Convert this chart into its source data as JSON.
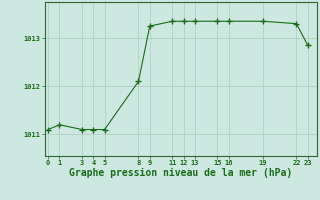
{
  "x": [
    0,
    1,
    3,
    4,
    5,
    8,
    9,
    11,
    12,
    13,
    15,
    16,
    19,
    22,
    23
  ],
  "y": [
    1011.1,
    1011.2,
    1011.1,
    1011.1,
    1011.1,
    1012.1,
    1013.25,
    1013.35,
    1013.35,
    1013.35,
    1013.35,
    1013.35,
    1013.35,
    1013.3,
    1012.85
  ],
  "line_color": "#1a6b1a",
  "marker_color": "#1a6b1a",
  "bg_color": "#cce8e0",
  "grid_color": "#aaccbb",
  "xlabel": "Graphe pression niveau de la mer (hPa)",
  "xlabel_color": "#1a6b1a",
  "xticks": [
    0,
    1,
    3,
    4,
    5,
    8,
    9,
    11,
    12,
    13,
    15,
    16,
    19,
    22,
    23
  ],
  "yticks": [
    1011,
    1012,
    1013
  ],
  "ylim": [
    1010.55,
    1013.75
  ],
  "xlim": [
    -0.3,
    23.8
  ],
  "tick_color": "#1a6b1a",
  "border_color": "#336633",
  "xlabel_fontsize": 7,
  "ytick_fontsize": 6,
  "xtick_fontsize": 5
}
